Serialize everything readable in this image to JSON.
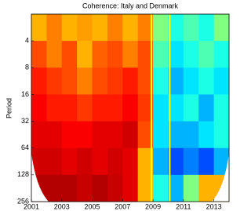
{
  "chart_data": {
    "type": "heatmap",
    "title": "Coherence: Italy and Denmark",
    "ylabel": "Period",
    "x_edges": [
      2001,
      2002,
      2003,
      2004,
      2005,
      2006,
      2007,
      2008,
      2009,
      2010,
      2011,
      2012,
      2013,
      2014
    ],
    "y_edges": [
      2,
      4,
      8,
      16,
      32,
      64,
      128,
      256
    ],
    "z": [
      [
        0.7,
        0.75,
        0.7,
        0.72,
        0.7,
        0.75,
        0.7,
        0.75,
        0.5,
        0.4,
        0.45,
        0.4,
        0.5
      ],
      [
        0.8,
        0.75,
        0.8,
        0.7,
        0.78,
        0.8,
        0.75,
        0.8,
        0.45,
        0.35,
        0.4,
        0.45,
        0.4
      ],
      [
        0.85,
        0.82,
        0.8,
        0.75,
        0.8,
        0.82,
        0.85,
        0.8,
        0.4,
        0.3,
        0.35,
        0.4,
        0.35
      ],
      [
        0.88,
        0.85,
        0.85,
        0.82,
        0.85,
        0.85,
        0.88,
        0.82,
        0.35,
        0.35,
        0.4,
        0.3,
        0.4
      ],
      [
        0.9,
        0.9,
        0.88,
        0.88,
        0.9,
        0.9,
        0.92,
        0.8,
        0.35,
        0.3,
        0.3,
        0.35,
        0.4
      ],
      [
        0.92,
        0.92,
        0.9,
        0.92,
        0.9,
        0.92,
        0.9,
        0.7,
        0.3,
        0.2,
        0.25,
        0.2,
        0.3
      ],
      [
        0.95,
        0.95,
        0.95,
        0.93,
        0.95,
        0.93,
        0.9,
        0.7,
        0.4,
        0.3,
        0.5,
        0.7,
        0.7
      ]
    ],
    "colormap": "jet",
    "log_y": true,
    "y_reversed": true,
    "xlim": [
      2001,
      2014
    ],
    "ylim": [
      2,
      256
    ],
    "xticks": [
      2001,
      2003,
      2005,
      2007,
      2009,
      2011,
      2013
    ],
    "yticks": [
      4,
      8,
      16,
      32,
      64,
      128,
      256
    ],
    "vlines": [
      2008.9,
      2010.1
    ],
    "vline_color": "#ffff00"
  }
}
